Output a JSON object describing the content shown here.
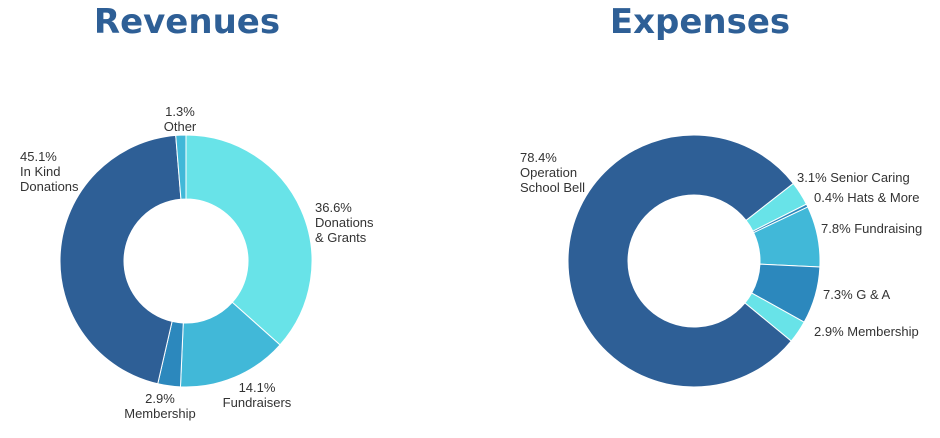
{
  "colors": {
    "title": "#2E5F96",
    "dark_blue": "#2E5F96",
    "medium_blue": "#2C88BD",
    "light_blue": "#41B8D8",
    "cyan": "#68E3E8",
    "label": "#333333"
  },
  "chart_data": [
    {
      "type": "pie",
      "donut": true,
      "title": "Revenues",
      "slices": [
        {
          "value": 36.6,
          "label": [
            "36.6%",
            "Donations",
            "& Grants"
          ],
          "color": "#68E3E8"
        },
        {
          "value": 14.1,
          "label": [
            "14.1%",
            "Fundraisers"
          ],
          "color": "#41B8D8"
        },
        {
          "value": 2.9,
          "label": [
            "2.9%",
            "Membership"
          ],
          "color": "#2C88BD"
        },
        {
          "value": 45.1,
          "label": [
            "45.1%",
            "In Kind",
            "Donations"
          ],
          "color": "#2E5F96"
        },
        {
          "value": 1.3,
          "label": [
            "1.3%",
            "Other"
          ],
          "color": "#41B8D8"
        }
      ]
    },
    {
      "type": "pie",
      "donut": true,
      "title": "Expenses",
      "slices": [
        {
          "value": 3.1,
          "label": [
            "3.1% Senior Caring"
          ],
          "color": "#68E3E8"
        },
        {
          "value": 0.4,
          "label": [
            "0.4% Hats & More"
          ],
          "color": "#2C88BD"
        },
        {
          "value": 7.8,
          "label": [
            "7.8%  Fundraising"
          ],
          "color": "#41B8D8"
        },
        {
          "value": 7.3,
          "label": [
            "7.3% G & A"
          ],
          "color": "#2C88BD"
        },
        {
          "value": 2.9,
          "label": [
            "2.9% Membership"
          ],
          "color": "#68E3E8"
        },
        {
          "value": 78.4,
          "label": [
            "78.4%",
            "Operation",
            "School Bell"
          ],
          "color": "#2E5F96"
        }
      ]
    }
  ]
}
